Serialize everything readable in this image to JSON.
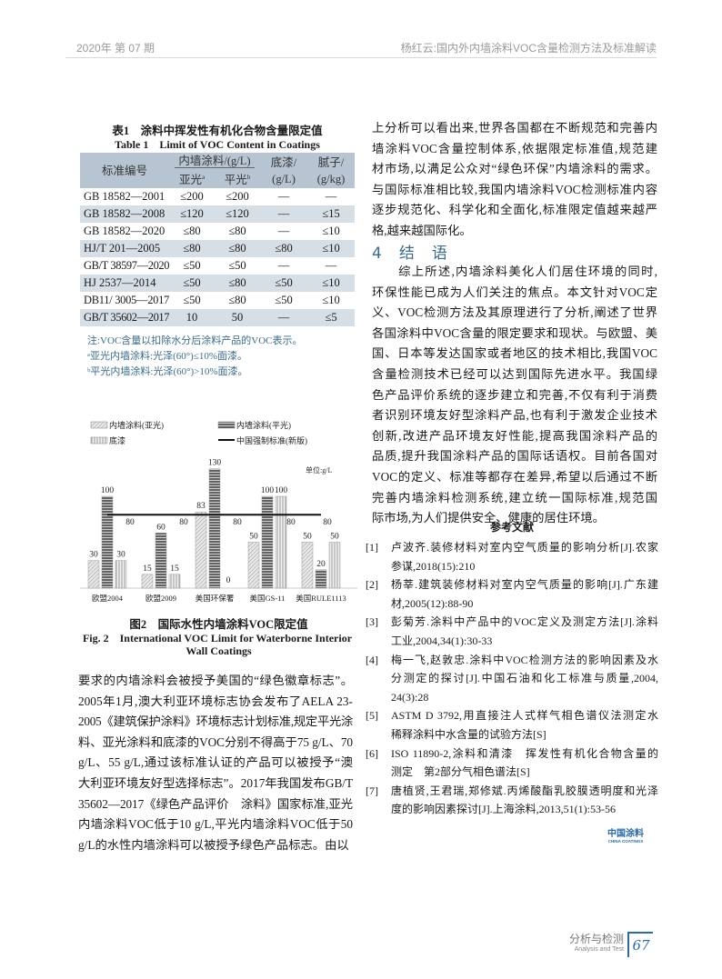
{
  "header": {
    "left": "2020年 第 07 期",
    "right": "杨红云:国内外内墙涂料VOC含量检测方法及标准解读"
  },
  "table1": {
    "caption_cn": "表1　涂料中挥发性有机化合物含量限定值",
    "caption_en": "Table 1　Limit of VOC Content in Coatings",
    "headers": {
      "standard": "标准编号",
      "interior": "内墙涂料/(g/L)",
      "matte": "亚光",
      "matte_sup": "a",
      "flat": "平光",
      "flat_sup": "b",
      "primer": "底漆/",
      "primer_unit": "(g/L)",
      "putty": "腻子/",
      "putty_unit": "(g/kg)"
    },
    "rows": [
      [
        "GB 18582—2001",
        "≤200",
        "≤200",
        "—",
        "—"
      ],
      [
        "GB 18582—2008",
        "≤120",
        "≤120",
        "—",
        "≤15"
      ],
      [
        "GB 18582—2020",
        "≤80",
        "≤80",
        "—",
        "≤10"
      ],
      [
        "HJ/T 201—2005",
        "≤80",
        "≤80",
        "≤80",
        "≤10"
      ],
      [
        "GB/T 38597—2020",
        "≤50",
        "≤50",
        "—",
        "—"
      ],
      [
        "HJ 2537—2014",
        "≤50",
        "≤80",
        "≤50",
        "≤10"
      ],
      [
        "DB11/ 3005—2017",
        "≤50",
        "≤80",
        "≤50",
        "≤10"
      ],
      [
        "GB/T 35602—2017",
        "10",
        "50",
        "—",
        "≤5"
      ]
    ],
    "notes": [
      "注:VOC含量以扣除水分后涂料产品的VOC表示。",
      "ᵃ亚光内墙涂料:光泽(60°)≤10%面漆。",
      "ᵇ平光内墙涂料:光泽(60°)>10%面漆。"
    ]
  },
  "chart_data": {
    "type": "bar",
    "categories": [
      "欧盟2004",
      "欧盟2009",
      "美国环保署",
      "美国GS-11",
      "美国RULE1113"
    ],
    "series": [
      {
        "name": "内墙涂料(亚光)",
        "values": [
          30,
          15,
          83,
          50,
          50
        ],
        "pattern": "diagonal"
      },
      {
        "name": "内墙涂料(平光)",
        "values": [
          100,
          60,
          130,
          100,
          20
        ],
        "pattern": "horizontal"
      },
      {
        "name": "底漆",
        "values": [
          30,
          15,
          0,
          100,
          50
        ],
        "pattern": "vertical"
      }
    ],
    "line": {
      "name": "中国强制标准(新版)",
      "value": 80,
      "labels": [
        "80",
        "80",
        "80",
        "80",
        "80"
      ]
    },
    "unit_label": "单位:g/L",
    "ylim": [
      0,
      130
    ],
    "grid": false,
    "legend": "top",
    "title_cn": "图2　国际水性内墙涂料VOC限定值",
    "title_en_lines": [
      "Fig. 2　International VOC Limit for Waterborne Interior",
      "Wall Coatings"
    ]
  },
  "left_text": [
    "要求的内墙涂料会被授予美国的“绿色徽章标志”。",
    "2005年1月,澳大利亚环境标志协会发布了AELA 23-",
    "2005《建筑保护涂料》环境标志计划标准,规定平光涂",
    "料、亚光涂料和底漆的VOC分别不得高于75 g/L、70",
    "g/L、55 g/L,通过该标准认证的产品可以被授予“澳",
    "大利亚环境友好型选择标志”。2017年我国发布GB/T",
    "35602—2017《绿色产品评价　涂料》国家标准,亚光",
    "内墙涂料VOC低于10 g/L,平光内墙涂料VOC低于50",
    "g/L的水性内墙涂料可以被授予绿色产品标志。由以"
  ],
  "right_text1": [
    "上分析可以看出来,世界各国都在不断规范和完善内",
    "墙涂料VOC含量控制体系,依据限定标准值,规范建",
    "材市场,以满足公众对“绿色环保”内墙涂料的需求。",
    "与国际标准相比较,我国内墙涂料VOC检测标准内容",
    "逐步规范化、科学化和全面化,标准限定值越来越严",
    "格,越来越国际化。"
  ],
  "section": {
    "number": "4",
    "title": "结　语"
  },
  "right_text2": [
    "　　综上所述,内墙涂料美化人们居住环境的同时,",
    "环保性能已成为人们关注的焦点。本文针对VOC定",
    "义、VOC检测方法及其原理进行了分析,阐述了世界",
    "各国涂料中VOC含量的限定要求和现状。与欧盟、美",
    "国、日本等发达国家或者地区的技术相比,我国VOC",
    "含量检测技术已经可以达到国际先进水平。我国绿",
    "色产品评价系统的逐步建立和完善,不仅有利于消费",
    "者识别环境友好型涂料产品,也有利于激发企业技术",
    "创新,改进产品环境友好性能,提高我国涂料产品的",
    "品质,提升我国涂料产品的国际话语权。目前各国对",
    "VOC的定义、标准等都存在差异,希望以后通过不断",
    "完善内墙涂料检测系统,建立统一国际标准,规范国",
    "际市场,为人们提供安全、健康的居住环境。"
  ],
  "references": {
    "title": "参考文献",
    "items": [
      {
        "num": "[1]",
        "lines": [
          "卢波齐.装修材料对室内空气质量的影响分析[J].农家",
          "参谋,2018(15):210"
        ]
      },
      {
        "num": "[2]",
        "lines": [
          "杨莘.建筑装修材料对室内空气质量的影响[J].广东建",
          "材,2005(12):88-90"
        ]
      },
      {
        "num": "[3]",
        "lines": [
          "彭菊芳.涂料中产品中的VOC定义及测定方法[J].涂料",
          "工业,2004,34(1):30-33"
        ]
      },
      {
        "num": "[4]",
        "lines": [
          "梅一飞,赵敦忠.涂料中VOC检测方法的影响因素及水",
          "分测定的探讨[J].中国石油和化工标准与质量,2004,",
          "24(3):28"
        ]
      },
      {
        "num": "[5]",
        "lines": [
          "ASTM D 3792,用直接注人式样气相色谱仪法测定水",
          "稀释涂料中水含量的试验方法[S]"
        ]
      },
      {
        "num": "[6]",
        "lines": [
          "ISO 11890-2,涂料和清漆　挥发性有机化合物含量的",
          "测定　第2部分气相色谱法[S]"
        ]
      },
      {
        "num": "[7]",
        "lines": [
          "唐植贤,王君瑞,郑修斌.丙烯酸酯乳胶膜透明度和光泽",
          "度的影响因素探讨[J].上海涂料,2013,51(1):53-56"
        ]
      }
    ]
  },
  "logo": {
    "cn": "中国涂料",
    "en": "CHINA COATINGS"
  },
  "footer": {
    "section_cn": "分析与检测",
    "section_en": "Analysis and Test",
    "page": "67"
  },
  "colors": {
    "accent": "#2a6aa8",
    "table_header": "#b7c5d2",
    "table_alt": "#d6dee6",
    "note": "#3a6d8d",
    "heading": "#3a6d8d"
  }
}
